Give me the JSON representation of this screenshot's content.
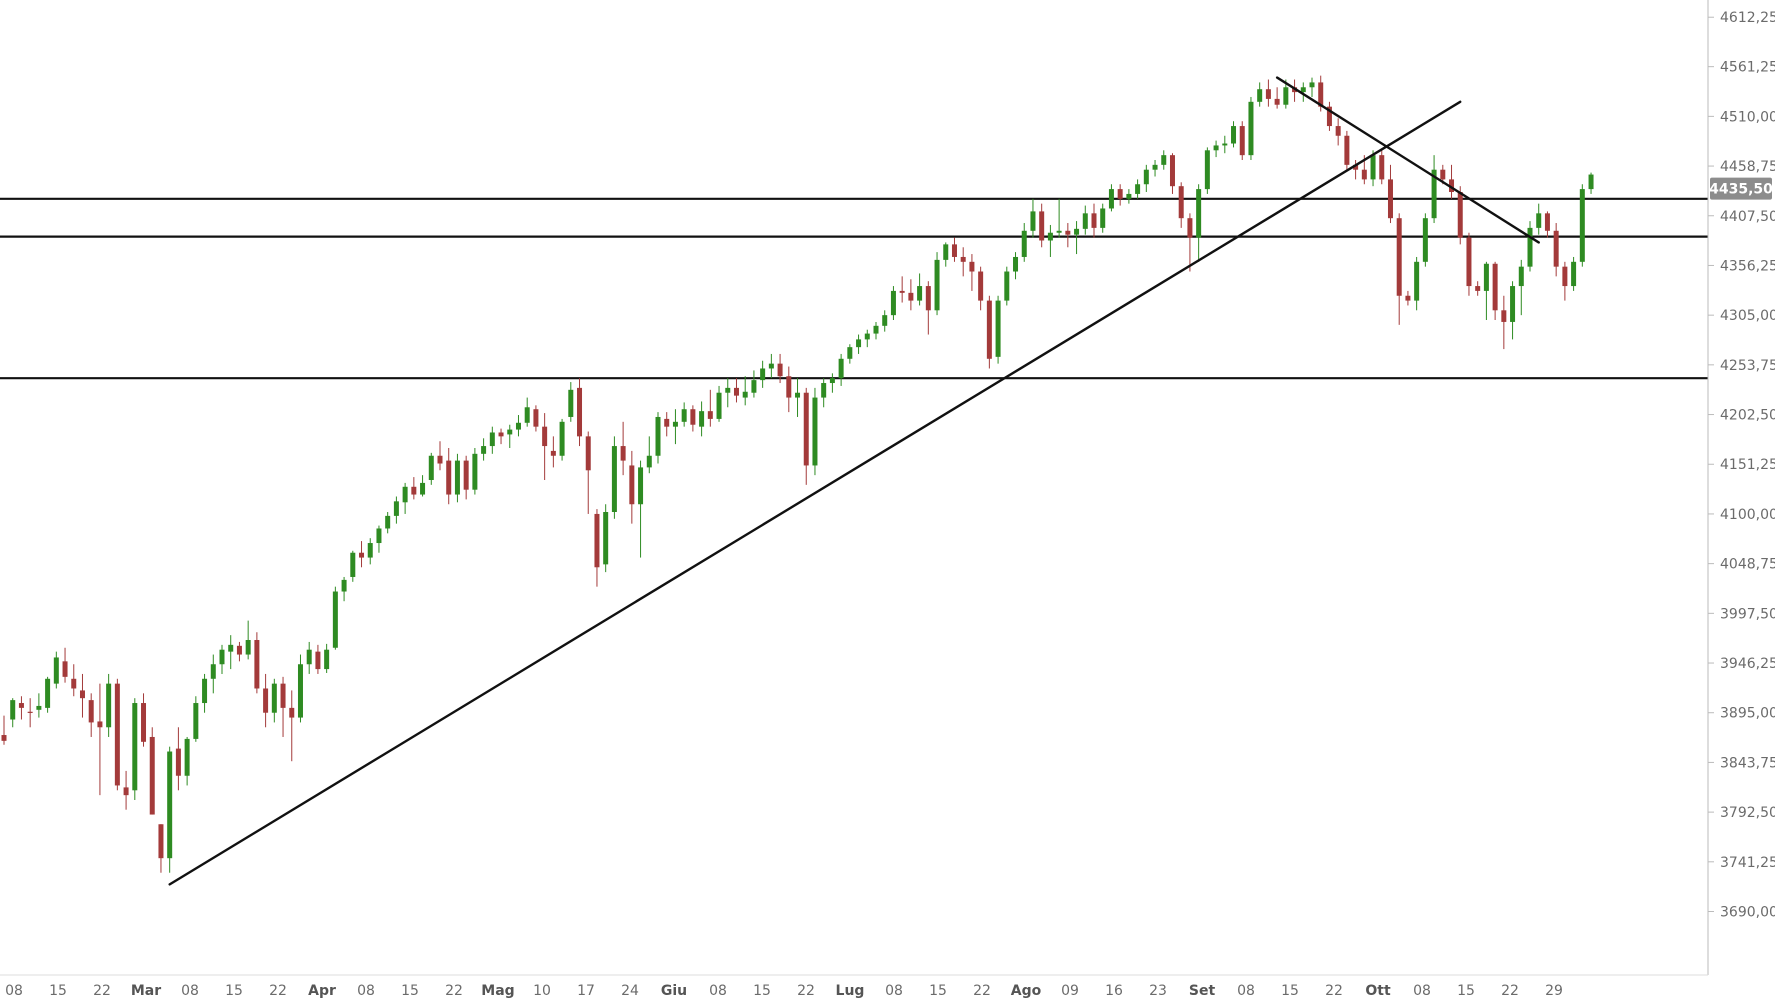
{
  "chart_data": {
    "type": "candlestick",
    "title": "",
    "xlabel": "",
    "ylabel": "",
    "y_axis_side": "right",
    "ylim": [
      3640,
      4630
    ],
    "grid": false,
    "y_ticks": [
      "4612,25",
      "4561,25",
      "4510,00",
      "4458,75",
      "4407,50",
      "4356,25",
      "4305,00",
      "4253,75",
      "4202,50",
      "4151,25",
      "4100,00",
      "4048,75",
      "3997,50",
      "3946,25",
      "3895,00",
      "3843,75",
      "3792,50",
      "3741,25",
      "3690,00"
    ],
    "x_ticks": [
      {
        "label": "08",
        "month": false
      },
      {
        "label": "15",
        "month": false
      },
      {
        "label": "22",
        "month": false
      },
      {
        "label": "Mar",
        "month": true
      },
      {
        "label": "08",
        "month": false
      },
      {
        "label": "15",
        "month": false
      },
      {
        "label": "22",
        "month": false
      },
      {
        "label": "Apr",
        "month": true
      },
      {
        "label": "08",
        "month": false
      },
      {
        "label": "15",
        "month": false
      },
      {
        "label": "22",
        "month": false
      },
      {
        "label": "Mag",
        "month": true
      },
      {
        "label": "10",
        "month": false
      },
      {
        "label": "17",
        "month": false
      },
      {
        "label": "24",
        "month": false
      },
      {
        "label": "Giu",
        "month": true
      },
      {
        "label": "08",
        "month": false
      },
      {
        "label": "15",
        "month": false
      },
      {
        "label": "22",
        "month": false
      },
      {
        "label": "Lug",
        "month": true
      },
      {
        "label": "08",
        "month": false
      },
      {
        "label": "15",
        "month": false
      },
      {
        "label": "22",
        "month": false
      },
      {
        "label": "Ago",
        "month": true
      },
      {
        "label": "09",
        "month": false
      },
      {
        "label": "16",
        "month": false
      },
      {
        "label": "23",
        "month": false
      },
      {
        "label": "Set",
        "month": true
      },
      {
        "label": "08",
        "month": false
      },
      {
        "label": "15",
        "month": false
      },
      {
        "label": "22",
        "month": false
      },
      {
        "label": "Ott",
        "month": true
      },
      {
        "label": "08",
        "month": false
      },
      {
        "label": "15",
        "month": false
      },
      {
        "label": "22",
        "month": false
      },
      {
        "label": "29",
        "month": false
      }
    ],
    "last_price": {
      "value": 4435.5,
      "label": "4435,50"
    },
    "horizontal_levels": [
      4425,
      4386,
      4240
    ],
    "trendlines": [
      {
        "from": {
          "bar": 19,
          "price": 3718
        },
        "to": {
          "bar": 167,
          "price": 4525
        }
      },
      {
        "from": {
          "bar": 146,
          "price": 4550
        },
        "to": {
          "bar": 176,
          "price": 4380
        }
      }
    ],
    "colors": {
      "up": "#2e8b22",
      "down": "#a33a3a",
      "wick_up": "#2e8b22",
      "wick_down": "#a33a3a",
      "lines": "#111111",
      "price_label_bg": "#8c8c8c",
      "axis": "#bbbbbb"
    },
    "candles": [
      [
        3872,
        3892,
        3862,
        3866
      ],
      [
        3888,
        3910,
        3880,
        3908
      ],
      [
        3905,
        3912,
        3888,
        3900
      ],
      [
        3896,
        3910,
        3880,
        3895
      ],
      [
        3898,
        3915,
        3890,
        3902
      ],
      [
        3900,
        3932,
        3895,
        3930
      ],
      [
        3925,
        3958,
        3920,
        3952
      ],
      [
        3948,
        3962,
        3926,
        3932
      ],
      [
        3930,
        3945,
        3912,
        3920
      ],
      [
        3918,
        3935,
        3890,
        3910
      ],
      [
        3908,
        3915,
        3870,
        3885
      ],
      [
        3886,
        3925,
        3810,
        3880
      ],
      [
        3880,
        3935,
        3870,
        3925
      ],
      [
        3925,
        3930,
        3815,
        3820
      ],
      [
        3818,
        3835,
        3795,
        3810
      ],
      [
        3815,
        3910,
        3805,
        3905
      ],
      [
        3905,
        3915,
        3860,
        3865
      ],
      [
        3870,
        3880,
        3790,
        3790
      ],
      [
        3780,
        3780,
        3730,
        3745
      ],
      [
        3745,
        3860,
        3730,
        3855
      ],
      [
        3858,
        3880,
        3815,
        3830
      ],
      [
        3830,
        3870,
        3820,
        3868
      ],
      [
        3868,
        3912,
        3865,
        3905
      ],
      [
        3905,
        3935,
        3895,
        3930
      ],
      [
        3930,
        3955,
        3915,
        3945
      ],
      [
        3945,
        3965,
        3935,
        3960
      ],
      [
        3958,
        3975,
        3940,
        3965
      ],
      [
        3964,
        3968,
        3948,
        3955
      ],
      [
        3955,
        3990,
        3950,
        3970
      ],
      [
        3970,
        3978,
        3915,
        3920
      ],
      [
        3920,
        3935,
        3880,
        3895
      ],
      [
        3895,
        3930,
        3885,
        3925
      ],
      [
        3925,
        3932,
        3870,
        3900
      ],
      [
        3900,
        3918,
        3845,
        3890
      ],
      [
        3890,
        3955,
        3885,
        3945
      ],
      [
        3945,
        3968,
        3935,
        3960
      ],
      [
        3958,
        3965,
        3935,
        3940
      ],
      [
        3940,
        3966,
        3936,
        3960
      ],
      [
        3962,
        4025,
        3960,
        4020
      ],
      [
        4020,
        4035,
        4010,
        4032
      ],
      [
        4035,
        4062,
        4030,
        4060
      ],
      [
        4060,
        4072,
        4045,
        4055
      ],
      [
        4055,
        4075,
        4048,
        4070
      ],
      [
        4070,
        4088,
        4060,
        4085
      ],
      [
        4085,
        4102,
        4080,
        4098
      ],
      [
        4098,
        4118,
        4090,
        4113
      ],
      [
        4112,
        4132,
        4100,
        4128
      ],
      [
        4128,
        4138,
        4115,
        4120
      ],
      [
        4120,
        4140,
        4118,
        4132
      ],
      [
        4135,
        4163,
        4130,
        4160
      ],
      [
        4160,
        4175,
        4145,
        4152
      ],
      [
        4155,
        4168,
        4110,
        4120
      ],
      [
        4120,
        4162,
        4112,
        4155
      ],
      [
        4155,
        4160,
        4115,
        4125
      ],
      [
        4125,
        4168,
        4120,
        4162
      ],
      [
        4162,
        4178,
        4155,
        4170
      ],
      [
        4170,
        4190,
        4162,
        4184
      ],
      [
        4184,
        4188,
        4172,
        4180
      ],
      [
        4182,
        4192,
        4168,
        4187
      ],
      [
        4187,
        4202,
        4180,
        4194
      ],
      [
        4194,
        4220,
        4190,
        4210
      ],
      [
        4208,
        4212,
        4185,
        4190
      ],
      [
        4190,
        4204,
        4135,
        4170
      ],
      [
        4165,
        4180,
        4148,
        4160
      ],
      [
        4160,
        4198,
        4155,
        4195
      ],
      [
        4200,
        4236,
        4195,
        4228
      ],
      [
        4230,
        4240,
        4170,
        4180
      ],
      [
        4180,
        4185,
        4100,
        4145
      ],
      [
        4100,
        4105,
        4025,
        4045
      ],
      [
        4048,
        4110,
        4040,
        4102
      ],
      [
        4102,
        4180,
        4095,
        4170
      ],
      [
        4170,
        4195,
        4140,
        4155
      ],
      [
        4150,
        4165,
        4090,
        4110
      ],
      [
        4110,
        4155,
        4055,
        4148
      ],
      [
        4148,
        4180,
        4142,
        4160
      ],
      [
        4160,
        4205,
        4152,
        4200
      ],
      [
        4198,
        4205,
        4180,
        4190
      ],
      [
        4190,
        4208,
        4172,
        4195
      ],
      [
        4195,
        4215,
        4190,
        4208
      ],
      [
        4208,
        4212,
        4185,
        4192
      ],
      [
        4190,
        4216,
        4180,
        4206
      ],
      [
        4206,
        4228,
        4190,
        4198
      ],
      [
        4198,
        4232,
        4195,
        4225
      ],
      [
        4225,
        4240,
        4210,
        4230
      ],
      [
        4230,
        4240,
        4215,
        4222
      ],
      [
        4220,
        4242,
        4212,
        4226
      ],
      [
        4225,
        4248,
        4220,
        4238
      ],
      [
        4238,
        4258,
        4230,
        4250
      ],
      [
        4250,
        4265,
        4240,
        4255
      ],
      [
        4255,
        4265,
        4235,
        4242
      ],
      [
        4242,
        4252,
        4205,
        4220
      ],
      [
        4220,
        4240,
        4200,
        4225
      ],
      [
        4225,
        4230,
        4130,
        4150
      ],
      [
        4150,
        4230,
        4140,
        4220
      ],
      [
        4220,
        4240,
        4210,
        4235
      ],
      [
        4235,
        4245,
        4225,
        4240
      ],
      [
        4240,
        4265,
        4232,
        4260
      ],
      [
        4260,
        4275,
        4255,
        4272
      ],
      [
        4272,
        4285,
        4265,
        4280
      ],
      [
        4280,
        4290,
        4272,
        4286
      ],
      [
        4286,
        4298,
        4280,
        4294
      ],
      [
        4294,
        4310,
        4288,
        4305
      ],
      [
        4305,
        4335,
        4300,
        4330
      ],
      [
        4330,
        4345,
        4318,
        4328
      ],
      [
        4328,
        4342,
        4310,
        4320
      ],
      [
        4320,
        4348,
        4315,
        4335
      ],
      [
        4335,
        4340,
        4285,
        4310
      ],
      [
        4310,
        4370,
        4305,
        4362
      ],
      [
        4362,
        4380,
        4355,
        4378
      ],
      [
        4378,
        4385,
        4360,
        4365
      ],
      [
        4365,
        4375,
        4345,
        4360
      ],
      [
        4360,
        4368,
        4330,
        4350
      ],
      [
        4350,
        4355,
        4310,
        4320
      ],
      [
        4320,
        4325,
        4250,
        4260
      ],
      [
        4262,
        4325,
        4255,
        4320
      ],
      [
        4320,
        4355,
        4315,
        4350
      ],
      [
        4350,
        4370,
        4342,
        4365
      ],
      [
        4365,
        4400,
        4360,
        4392
      ],
      [
        4392,
        4425,
        4385,
        4412
      ],
      [
        4412,
        4420,
        4375,
        4382
      ],
      [
        4382,
        4398,
        4365,
        4390
      ],
      [
        4390,
        4425,
        4385,
        4392
      ],
      [
        4392,
        4400,
        4375,
        4388
      ],
      [
        4388,
        4402,
        4368,
        4394
      ],
      [
        4394,
        4418,
        4388,
        4410
      ],
      [
        4410,
        4420,
        4385,
        4395
      ],
      [
        4395,
        4420,
        4390,
        4415
      ],
      [
        4415,
        4440,
        4412,
        4435
      ],
      [
        4435,
        4440,
        4418,
        4425
      ],
      [
        4425,
        4435,
        4420,
        4430
      ],
      [
        4430,
        4445,
        4425,
        4440
      ],
      [
        4440,
        4460,
        4432,
        4455
      ],
      [
        4455,
        4465,
        4448,
        4460
      ],
      [
        4460,
        4475,
        4455,
        4470
      ],
      [
        4470,
        4472,
        4430,
        4438
      ],
      [
        4438,
        4442,
        4395,
        4405
      ],
      [
        4405,
        4410,
        4350,
        4385
      ],
      [
        4385,
        4440,
        4360,
        4435
      ],
      [
        4435,
        4478,
        4430,
        4475
      ],
      [
        4475,
        4485,
        4468,
        4480
      ],
      [
        4480,
        4490,
        4472,
        4482
      ],
      [
        4482,
        4505,
        4478,
        4500
      ],
      [
        4500,
        4505,
        4465,
        4470
      ],
      [
        4470,
        4530,
        4465,
        4525
      ],
      [
        4525,
        4545,
        4520,
        4538
      ],
      [
        4538,
        4548,
        4520,
        4528
      ],
      [
        4528,
        4540,
        4518,
        4522
      ],
      [
        4522,
        4548,
        4518,
        4540
      ],
      [
        4540,
        4548,
        4525,
        4535
      ],
      [
        4535,
        4545,
        4525,
        4540
      ],
      [
        4540,
        4550,
        4530,
        4545
      ],
      [
        4545,
        4552,
        4515,
        4520
      ],
      [
        4520,
        4525,
        4495,
        4500
      ],
      [
        4500,
        4508,
        4480,
        4490
      ],
      [
        4490,
        4495,
        4455,
        4460
      ],
      [
        4460,
        4465,
        4445,
        4455
      ],
      [
        4455,
        4470,
        4440,
        4445
      ],
      [
        4445,
        4475,
        4438,
        4470
      ],
      [
        4470,
        4475,
        4440,
        4445
      ],
      [
        4445,
        4460,
        4400,
        4405
      ],
      [
        4405,
        4410,
        4295,
        4325
      ],
      [
        4325,
        4330,
        4315,
        4320
      ],
      [
        4320,
        4365,
        4310,
        4360
      ],
      [
        4360,
        4410,
        4355,
        4405
      ],
      [
        4405,
        4470,
        4400,
        4455
      ],
      [
        4455,
        4460,
        4440,
        4445
      ],
      [
        4445,
        4460,
        4425,
        4432
      ],
      [
        4432,
        4438,
        4378,
        4385
      ],
      [
        4385,
        4390,
        4325,
        4335
      ],
      [
        4335,
        4340,
        4325,
        4330
      ],
      [
        4330,
        4360,
        4300,
        4358
      ],
      [
        4358,
        4360,
        4300,
        4310
      ],
      [
        4310,
        4325,
        4270,
        4298
      ],
      [
        4298,
        4340,
        4280,
        4335
      ],
      [
        4335,
        4362,
        4305,
        4355
      ],
      [
        4355,
        4402,
        4350,
        4395
      ],
      [
        4395,
        4420,
        4388,
        4410
      ],
      [
        4410,
        4412,
        4385,
        4392
      ],
      [
        4392,
        4400,
        4345,
        4355
      ],
      [
        4355,
        4360,
        4320,
        4335
      ],
      [
        4335,
        4365,
        4330,
        4360
      ],
      [
        4360,
        4440,
        4355,
        4435
      ],
      [
        4435,
        4452,
        4430,
        4450
      ]
    ]
  }
}
